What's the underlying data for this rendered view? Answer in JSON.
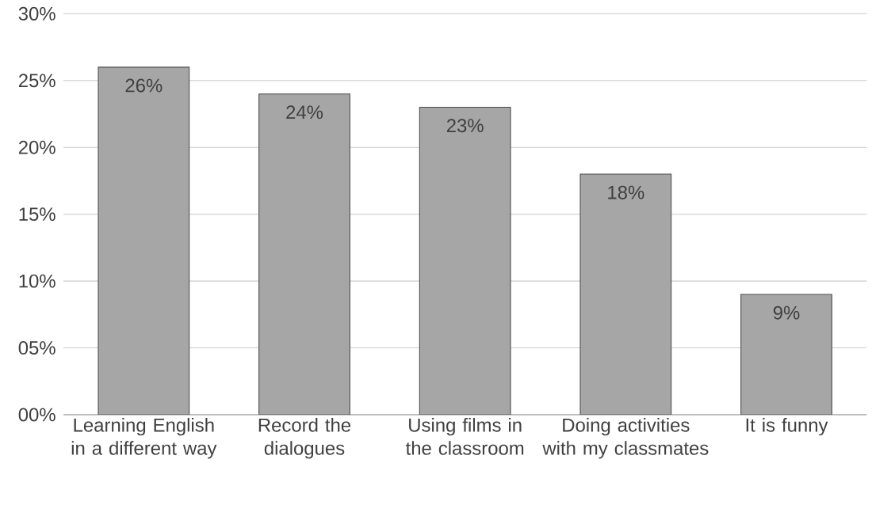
{
  "chart_data": {
    "type": "bar",
    "categories": [
      "Learning English in a different way",
      "Record the dialogues",
      "Using films in the classroom",
      "Doing activities with my classmates",
      "It is funny"
    ],
    "values": [
      26,
      24,
      23,
      18,
      9
    ],
    "value_labels": [
      "26%",
      "24%",
      "23%",
      "18%",
      "9%"
    ],
    "color": "#a6a6a6",
    "ylim": [
      0,
      30
    ],
    "yticks": [
      {
        "value": 0,
        "label": "00%"
      },
      {
        "value": 5,
        "label": "05%"
      },
      {
        "value": 10,
        "label": "10%"
      },
      {
        "value": 15,
        "label": "15%"
      },
      {
        "value": 20,
        "label": "20%"
      },
      {
        "value": 25,
        "label": "25%"
      },
      {
        "value": 30,
        "label": "30%"
      }
    ],
    "grid": "y"
  }
}
